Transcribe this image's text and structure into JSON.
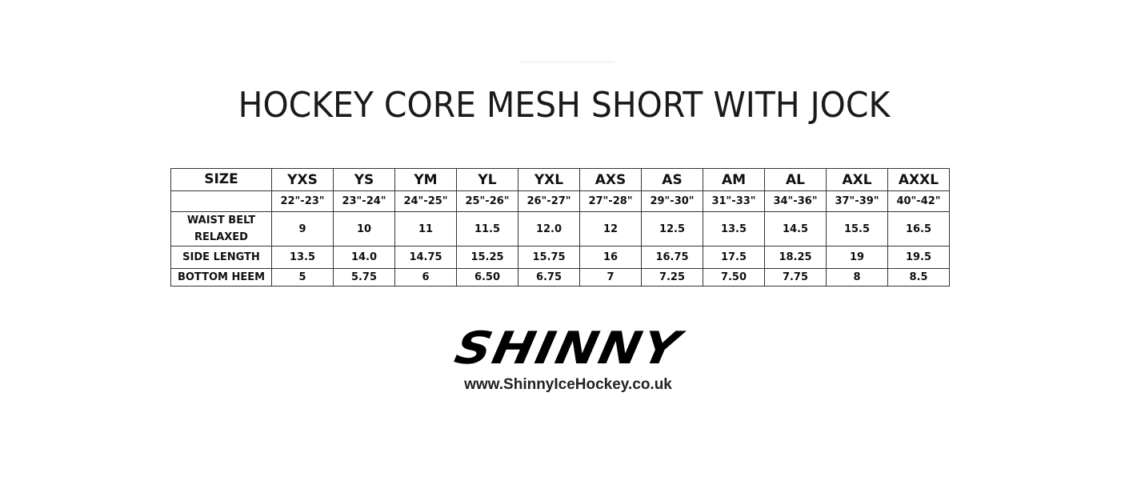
{
  "title": "HOCKEY CORE MESH SHORT WITH JOCK",
  "table": {
    "header": [
      "SIZE",
      "YXS",
      "YS",
      "YM",
      "YL",
      "YXL",
      "AXS",
      "AS",
      "AM",
      "AL",
      "AXL",
      "AXXL"
    ],
    "rows": [
      {
        "label": "",
        "values": [
          "22\"-23\"",
          "23\"-24\"",
          "24\"-25\"",
          "25\"-26\"",
          "26\"-27\"",
          "27\"-28\"",
          "29\"-30\"",
          "31\"-33\"",
          "34\"-36\"",
          "37\"-39\"",
          "40\"-42\""
        ]
      },
      {
        "label": "WAIST BELT RELAXED",
        "values": [
          "9",
          "10",
          "11",
          "11.5",
          "12.0",
          "12",
          "12.5",
          "13.5",
          "14.5",
          "15.5",
          "16.5"
        ]
      },
      {
        "label": "SIDE LENGTH",
        "values": [
          "13.5",
          "14.0",
          "14.75",
          "15.25",
          "15.75",
          "16",
          "16.75",
          "17.5",
          "18.25",
          "19",
          "19.5"
        ]
      },
      {
        "label": "BOTTOM HEEM",
        "values": [
          "5",
          "5.75",
          "6",
          "6.50",
          "6.75",
          "7",
          "7.25",
          "7.50",
          "7.75",
          "8",
          "8.5"
        ]
      }
    ]
  },
  "logo": {
    "text": "SHINNY"
  },
  "url": "www.ShinnyIceHockey.co.uk"
}
